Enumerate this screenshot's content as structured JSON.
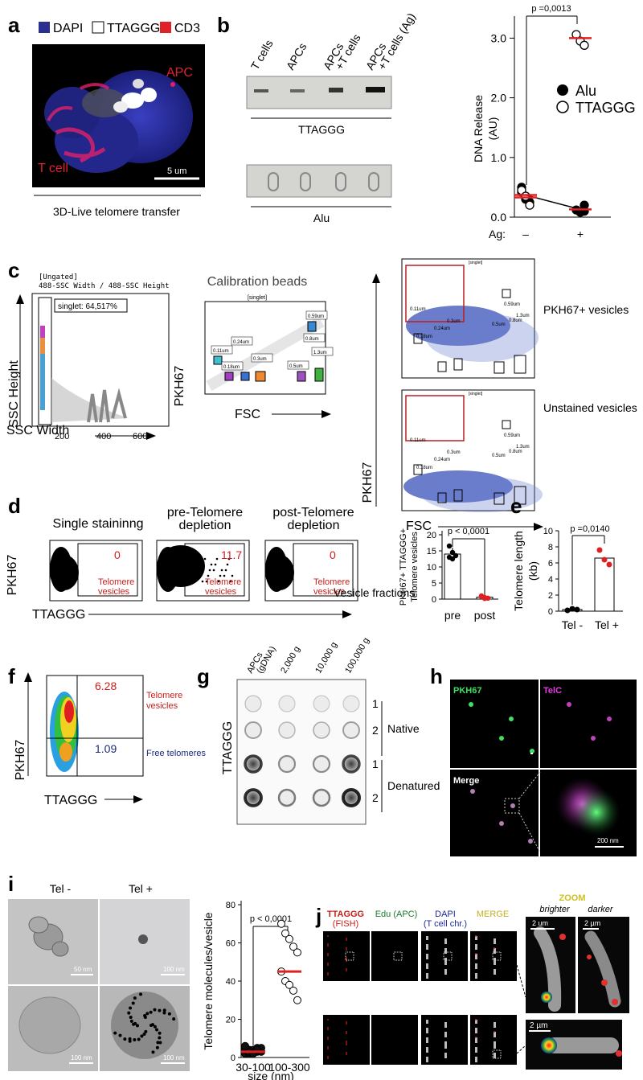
{
  "panels": {
    "a": {
      "label": "a",
      "legend": [
        "DAPI",
        "TTAGGG",
        "CD3"
      ],
      "legend_colors": [
        "#2b2f8f",
        "#ffffff",
        "#e0202a"
      ],
      "apc": "APC",
      "tcell": "T cell",
      "scale": "5 um",
      "caption": "3D-Live telomere transfer"
    },
    "b": {
      "label": "b",
      "lanes": [
        "T cells",
        "APCs",
        "APCs\n+T cells",
        "APCs\n+T cells (Ag)"
      ],
      "gel1": "TTAGGG",
      "gel2": "Alu"
    },
    "b_chart": {
      "pvalue": "p =0,0013",
      "legend": [
        "Alu",
        "TTAGGG"
      ],
      "ag_label": "Ag:",
      "ag_minus": "–",
      "ag_plus": "+"
    },
    "c": {
      "label": "c",
      "gate_header1": "[Ungated]",
      "gate_header2": "488-SSC Width / 488-SSC Height",
      "singlet": "singlet: 64,517%",
      "ylabel1": "SSC Height",
      "xlabel1": "SSC Width",
      "cal_title": "Calibration beads",
      "singlet_tag": "[singlet]",
      "ylabel2": "PKH67",
      "xlabel2": "FSC",
      "sizes": [
        "0.11um",
        "0.18um",
        "0.24um",
        "0.3um",
        "0.5um",
        "0.59um",
        "0.8um",
        "1.3um"
      ],
      "pkh_pos": "PKH67+ vesicles",
      "unstained": "Unstained vesicles",
      "ylabel3": "PKH67",
      "xlabel3": "FSC"
    },
    "d": {
      "label": "d",
      "titles": [
        "Single staininng",
        "pre-Telomere\ndepletion",
        "post-Telomere\ndepletion"
      ],
      "gate_values": [
        "0",
        "11.7",
        "0"
      ],
      "gate_name": "Telomere\nvesicles",
      "ylabel": "PKH67",
      "xlabel": "TTAGGG",
      "fractions": "Vesicle fractions",
      "bar_ylabel": "PKH67+ TTAGGG+\nTelomere vesicles",
      "bar_p": "p < 0,0001",
      "bar_x": [
        "pre",
        "post"
      ]
    },
    "e": {
      "label": "e",
      "ylabel": "Telomere length\n(kb)",
      "pvalue": "p =0,0140",
      "x": [
        "Tel -",
        "Tel +"
      ]
    },
    "f": {
      "label": "f",
      "q1": "6.28",
      "q1_name": "Telomere\nvesicles",
      "q2": "1.09",
      "q2_name": "Free telomeres",
      "ylabel": "PKH67",
      "xlabel": "TTAGGG"
    },
    "g": {
      "label": "g",
      "cols": [
        "APCs\n(gDNA)",
        "2,000 g",
        "10,000 g",
        "100,000 g"
      ],
      "ylabel": "TTAGGG",
      "rows": [
        "1",
        "2",
        "1",
        "2"
      ],
      "native": "Native",
      "denatured": "Denatured"
    },
    "h": {
      "label": "h",
      "pkh": "PKH67",
      "telc": "TelC",
      "merge": "Merge",
      "scale": "200 nm"
    },
    "i": {
      "label": "i",
      "tel_minus": "Tel -",
      "tel_plus": "Tel +",
      "scales": [
        "50 nm",
        "100 nm",
        "100 nm",
        "100 nm"
      ],
      "ylabel": "Telomere molecules/vesicle",
      "xlabel": "size (nm)",
      "pvalue": "p < 0,0001",
      "x": [
        "30-100",
        "100-300"
      ]
    },
    "j": {
      "label": "j",
      "h1": "TTAGGG\n(FISH)",
      "h2": "Edu (APC)",
      "h3": "DAPI\n(T cell chr.)",
      "h4": "MERGE",
      "zoom": "ZOOM",
      "brighter": "brighter",
      "darker": "darker",
      "scale": "2 um",
      "scale2": "2 µm"
    }
  },
  "chart_data": [
    {
      "type": "scatter",
      "panel": "b",
      "ylabel": "DNA Release\n(AU)",
      "ylim": [
        0,
        3.2
      ],
      "yticks": [
        "0.0",
        "1.0",
        "2.0",
        "3.0"
      ],
      "x": [
        "–",
        "+"
      ],
      "series": [
        {
          "name": "Alu",
          "points": [
            [
              0,
              0.42
            ],
            [
              0,
              0.3
            ],
            [
              0,
              0.25
            ],
            [
              0,
              0.5
            ],
            [
              0,
              0.35
            ],
            [
              1,
              0.2
            ],
            [
              1,
              0.12
            ],
            [
              1,
              0.08
            ],
            [
              1,
              0.1
            ]
          ],
          "mean": [
            0.37,
            0.13
          ]
        },
        {
          "name": "TTAGGG",
          "points": [
            [
              0,
              0.45
            ],
            [
              0,
              0.35
            ],
            [
              0,
              0.2
            ],
            [
              1,
              3.06
            ],
            [
              1,
              2.95
            ],
            [
              1,
              2.88
            ]
          ],
          "mean": [
            0.33,
            3.0
          ]
        }
      ]
    },
    {
      "type": "bar",
      "panel": "d",
      "categories": [
        "pre",
        "post"
      ],
      "values": [
        14,
        0.6
      ],
      "ylim": [
        0,
        20
      ],
      "yticks": [
        "0",
        "5",
        "10",
        "15",
        "20"
      ],
      "points": [
        [
          16.5,
          14.5,
          13.5,
          13,
          12.5
        ],
        [
          1,
          0.5,
          0.3,
          0.8,
          0.2
        ]
      ]
    },
    {
      "type": "bar",
      "panel": "e",
      "categories": [
        "Tel -",
        "Tel +"
      ],
      "values": [
        0.2,
        6.6
      ],
      "ylim": [
        0,
        10
      ],
      "yticks": [
        "0",
        "2",
        "4",
        "6",
        "8",
        "10"
      ],
      "points": [
        [
          0.1,
          0.3,
          0.2
        ],
        [
          7.6,
          6.4,
          5.8
        ]
      ]
    },
    {
      "type": "scatter",
      "panel": "i",
      "categories": [
        "30-100",
        "100-300"
      ],
      "ylim": [
        0,
        80
      ],
      "yticks": [
        "0",
        "20",
        "40",
        "60",
        "80"
      ],
      "median": [
        3,
        45
      ],
      "points": [
        [
          2,
          2,
          3,
          3,
          3,
          4,
          4,
          4,
          5,
          5,
          6,
          3,
          2,
          4
        ],
        [
          70,
          65,
          62,
          58,
          55,
          45,
          40,
          38,
          35,
          30
        ]
      ]
    }
  ]
}
